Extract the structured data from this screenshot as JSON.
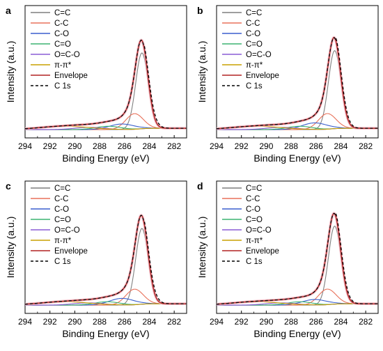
{
  "figure": {
    "panel_labels": [
      "a",
      "b",
      "c",
      "d"
    ],
    "xlabel": "Binding Energy (eV)",
    "ylabel": "Intensity (a.u.)"
  },
  "legend": [
    {
      "label": "C=C",
      "color": "#7f7f7f",
      "dash": false
    },
    {
      "label": "C-C",
      "color": "#e8715a",
      "dash": false
    },
    {
      "label": "C-O",
      "color": "#3a5fcd",
      "dash": false
    },
    {
      "label": "C=O",
      "color": "#3cb371",
      "dash": false
    },
    {
      "label": "O=C-O",
      "color": "#8a5cd6",
      "dash": false
    },
    {
      "label": "π-π*",
      "color": "#c8a000",
      "dash": false
    },
    {
      "label": "Envelope",
      "color": "#b22222",
      "dash": false
    },
    {
      "label": "C 1s",
      "color": "#000000",
      "dash": true
    }
  ],
  "chart_data": [
    {
      "panel": "a",
      "type": "line",
      "xlim": [
        294,
        281
      ],
      "xticks": [
        294,
        292,
        290,
        288,
        286,
        284,
        282
      ],
      "ylim": [
        0,
        1.1
      ],
      "xlabel": "Binding Energy (eV)",
      "ylabel": "Intensity (a.u.)",
      "legend_position": "top-left",
      "x_reversed": true,
      "components": [
        {
          "name": "C=C",
          "center": 284.6,
          "height": 0.68,
          "width": 0.5
        },
        {
          "name": "C-C",
          "center": 285.2,
          "height": 0.14,
          "width": 0.7
        },
        {
          "name": "C-O",
          "center": 286.2,
          "height": 0.05,
          "width": 1.0
        },
        {
          "name": "C=O",
          "center": 287.3,
          "height": 0.03,
          "width": 1.0
        },
        {
          "name": "O=C-O",
          "center": 288.8,
          "height": 0.02,
          "width": 1.2
        },
        {
          "name": "π-π*",
          "center": 290.8,
          "height": 0.03,
          "width": 2.0
        }
      ]
    },
    {
      "panel": "b",
      "type": "line",
      "xlim": [
        294,
        281
      ],
      "xticks": [
        294,
        292,
        290,
        288,
        286,
        284,
        282
      ],
      "ylim": [
        0,
        1.1
      ],
      "xlabel": "Binding Energy (eV)",
      "ylabel": "Intensity (a.u.)",
      "legend_position": "top-left",
      "x_reversed": true,
      "components": [
        {
          "name": "C=C",
          "center": 284.5,
          "height": 0.7,
          "width": 0.5
        },
        {
          "name": "C-C",
          "center": 285.1,
          "height": 0.14,
          "width": 0.7
        },
        {
          "name": "C-O",
          "center": 286.1,
          "height": 0.06,
          "width": 1.0
        },
        {
          "name": "C=O",
          "center": 287.3,
          "height": 0.03,
          "width": 1.0
        },
        {
          "name": "O=C-O",
          "center": 288.8,
          "height": 0.02,
          "width": 1.2
        },
        {
          "name": "π-π*",
          "center": 290.8,
          "height": 0.03,
          "width": 2.0
        }
      ]
    },
    {
      "panel": "c",
      "type": "line",
      "xlim": [
        294,
        281
      ],
      "xticks": [
        294,
        292,
        290,
        288,
        286,
        284,
        282
      ],
      "ylim": [
        0,
        1.1
      ],
      "xlabel": "Binding Energy (eV)",
      "ylabel": "Intensity (a.u.)",
      "legend_position": "top-left",
      "x_reversed": true,
      "components": [
        {
          "name": "C=C",
          "center": 284.6,
          "height": 0.68,
          "width": 0.5
        },
        {
          "name": "C-C",
          "center": 285.2,
          "height": 0.14,
          "width": 0.7
        },
        {
          "name": "C-O",
          "center": 286.2,
          "height": 0.06,
          "width": 1.0
        },
        {
          "name": "C=O",
          "center": 287.4,
          "height": 0.03,
          "width": 1.0
        },
        {
          "name": "O=C-O",
          "center": 288.9,
          "height": 0.02,
          "width": 1.2
        },
        {
          "name": "π-π*",
          "center": 290.8,
          "height": 0.03,
          "width": 2.0
        }
      ]
    },
    {
      "panel": "d",
      "type": "line",
      "xlim": [
        294,
        281
      ],
      "xticks": [
        294,
        292,
        290,
        288,
        286,
        284,
        282
      ],
      "ylim": [
        0,
        1.1
      ],
      "xlabel": "Binding Energy (eV)",
      "ylabel": "Intensity (a.u.)",
      "legend_position": "top-left",
      "x_reversed": true,
      "components": [
        {
          "name": "C=C",
          "center": 284.5,
          "height": 0.7,
          "width": 0.5
        },
        {
          "name": "C-C",
          "center": 285.1,
          "height": 0.14,
          "width": 0.7
        },
        {
          "name": "C-O",
          "center": 286.1,
          "height": 0.05,
          "width": 1.0
        },
        {
          "name": "C=O",
          "center": 287.3,
          "height": 0.03,
          "width": 1.0
        },
        {
          "name": "O=C-O",
          "center": 288.8,
          "height": 0.02,
          "width": 1.2
        },
        {
          "name": "π-π*",
          "center": 290.8,
          "height": 0.03,
          "width": 2.0
        }
      ]
    }
  ]
}
